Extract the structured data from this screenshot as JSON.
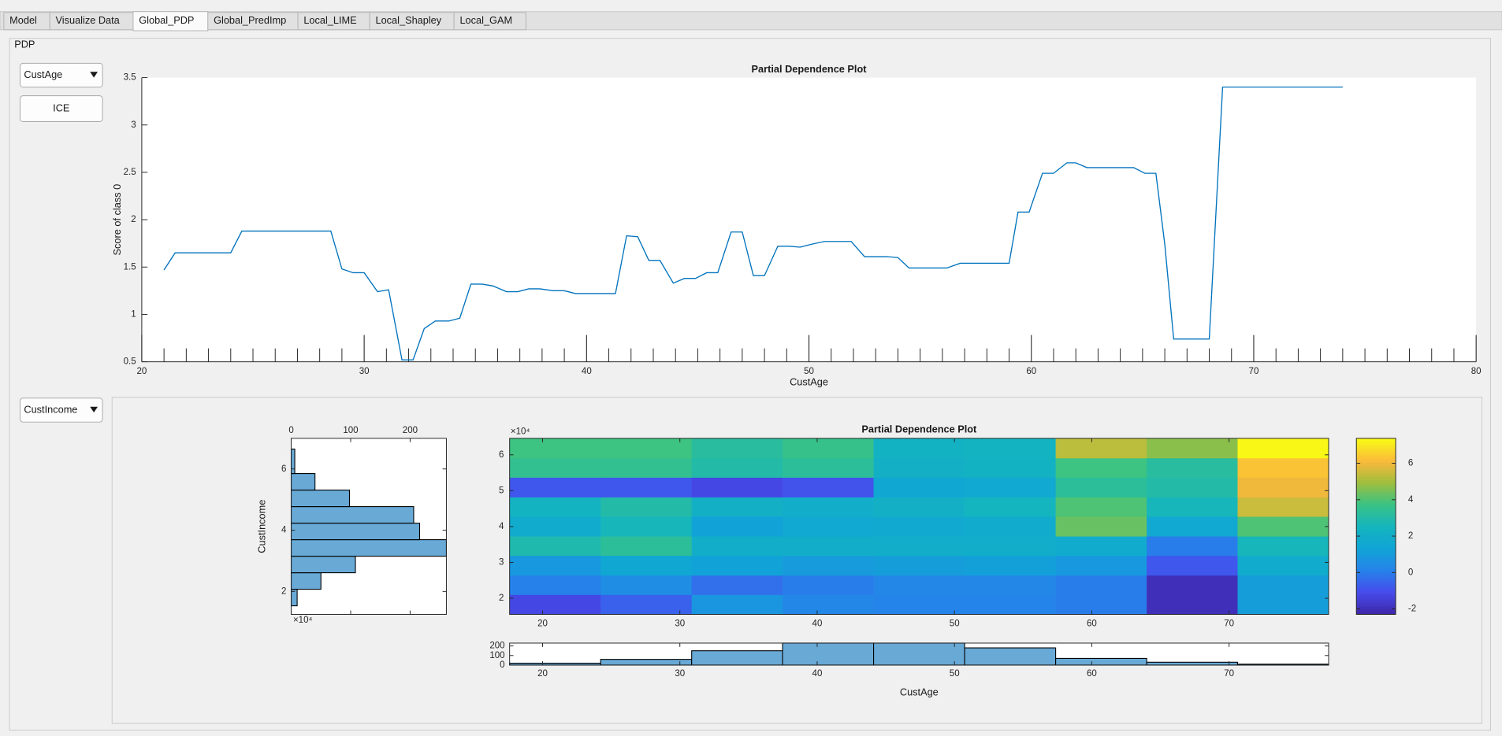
{
  "tabs": [
    "Model",
    "Visualize Data",
    "Global_PDP",
    "Global_PredImp",
    "Local_LIME",
    "Local_Shapley",
    "Local_GAM"
  ],
  "selected_tab": 2,
  "panel_title": "PDP",
  "controls": {
    "feature1": "CustAge",
    "button": "ICE",
    "feature2": "CustIncome"
  },
  "chart_data": [
    {
      "type": "line",
      "title": "Partial Dependence Plot",
      "xlabel": "CustAge",
      "ylabel": "Score of class 0",
      "color": "#0072bd",
      "xlim": [
        20,
        80
      ],
      "xticks": [
        20,
        30,
        40,
        50,
        60,
        70,
        80
      ],
      "minor_ticks": true,
      "ylim": [
        0.5,
        3.5
      ],
      "yticks": [
        0.5,
        1,
        1.5,
        2,
        2.5,
        3,
        3.5
      ],
      "x": [
        21,
        21.5,
        24,
        24.5,
        28.5,
        29,
        29.5,
        30,
        30.6,
        31.1,
        31.7,
        32.2,
        32.7,
        33.2,
        33.8,
        34.3,
        34.8,
        35.3,
        35.8,
        36.4,
        36.9,
        37.4,
        37.9,
        38.5,
        39,
        39.5,
        41.3,
        41.8,
        42.3,
        42.8,
        43.3,
        43.9,
        44.4,
        44.9,
        45.4,
        45.9,
        46.5,
        47,
        47.5,
        48,
        48.6,
        49.1,
        49.6,
        50.1,
        50.7,
        51.9,
        52.5,
        53,
        53.5,
        54,
        54.5,
        56.2,
        56.8,
        58.4,
        59,
        59.4,
        59.9,
        60.5,
        61,
        61.6,
        62,
        62.5,
        64.6,
        65.1,
        65.6,
        66,
        66.4,
        68,
        68.6,
        74
      ],
      "values": [
        1.47,
        1.65,
        1.65,
        1.88,
        1.88,
        1.48,
        1.44,
        1.44,
        1.24,
        1.26,
        0.52,
        0.52,
        0.85,
        0.93,
        0.93,
        0.96,
        1.32,
        1.32,
        1.3,
        1.24,
        1.24,
        1.27,
        1.27,
        1.25,
        1.25,
        1.22,
        1.22,
        1.83,
        1.82,
        1.57,
        1.57,
        1.33,
        1.38,
        1.38,
        1.44,
        1.44,
        1.87,
        1.87,
        1.41,
        1.41,
        1.72,
        1.72,
        1.71,
        1.74,
        1.77,
        1.77,
        1.61,
        1.61,
        1.61,
        1.6,
        1.49,
        1.49,
        1.54,
        1.54,
        1.54,
        2.08,
        2.08,
        2.49,
        2.49,
        2.6,
        2.6,
        2.55,
        2.55,
        2.49,
        2.49,
        1.74,
        0.74,
        0.74,
        3.4,
        3.4
      ]
    },
    {
      "type": "heatmap",
      "title": "Partial Dependence Plot",
      "y_exponent": "×10⁴",
      "colormap": "parula",
      "xlim": [
        17.6,
        77.25
      ],
      "xticks": [
        20,
        30,
        40,
        50,
        60,
        70
      ],
      "ylim": [
        1.55,
        6.46
      ],
      "yticks": [
        2,
        3,
        4,
        5,
        6
      ],
      "xbins": [
        17.6,
        24.23,
        30.86,
        37.48,
        44.11,
        50.74,
        57.37,
        64.0,
        70.62,
        77.25
      ],
      "ybins": [
        1.55,
        2.1,
        2.64,
        3.19,
        3.73,
        4.28,
        4.82,
        5.37,
        5.91,
        6.46
      ],
      "z": [
        [
          -1.2,
          -0.6,
          0.8,
          0.3,
          0.2,
          0.2,
          0.0,
          -2.0,
          1.1
        ],
        [
          0.1,
          0.5,
          -0.3,
          0.0,
          0.3,
          0.3,
          0.0,
          -2.0,
          1.1
        ],
        [
          0.9,
          1.5,
          1.3,
          1.0,
          1.1,
          1.2,
          0.9,
          -0.8,
          1.8
        ],
        [
          2.9,
          3.3,
          2.0,
          2.0,
          2.0,
          2.0,
          1.8,
          0.0,
          2.6
        ],
        [
          1.8,
          2.6,
          1.3,
          1.6,
          1.7,
          1.8,
          4.3,
          1.6,
          4.0
        ],
        [
          2.4,
          3.0,
          2.2,
          2.0,
          2.2,
          2.5,
          4.0,
          2.6,
          5.5
        ],
        [
          -0.8,
          -0.8,
          -1.2,
          -0.9,
          1.5,
          1.6,
          3.3,
          3.0,
          6.0
        ],
        [
          3.5,
          3.5,
          3.0,
          3.3,
          2.2,
          2.3,
          3.8,
          3.2,
          6.3
        ],
        [
          3.8,
          3.8,
          3.2,
          3.6,
          2.3,
          2.4,
          5.3,
          4.7,
          7.3
        ]
      ],
      "clim": [
        -2.3,
        7.37
      ],
      "cticks": [
        -2,
        0,
        2,
        4,
        6
      ]
    },
    {
      "type": "histogram",
      "orientation": "horizontal",
      "ylabel": "CustIncome",
      "y_exponent": "×10⁴",
      "color": "#68a9d6",
      "xlim": [
        0,
        261
      ],
      "xticks": [
        0,
        100,
        200
      ],
      "ylim": [
        1.25,
        7.0
      ],
      "yticks": [
        2,
        4,
        6
      ],
      "bins": [
        1.53,
        2.07,
        2.61,
        3.15,
        3.69,
        4.23,
        4.77,
        5.31,
        5.85,
        6.65
      ],
      "counts": [
        10,
        50,
        108,
        261,
        216,
        206,
        98,
        40,
        6
      ]
    },
    {
      "type": "histogram",
      "orientation": "vertical",
      "xlabel": "CustAge",
      "color": "#68a9d6",
      "xlim": [
        17.6,
        77.25
      ],
      "xticks": [
        20,
        30,
        40,
        50,
        60,
        70
      ],
      "ylim": [
        0,
        230
      ],
      "yticks": [
        0,
        100,
        200
      ],
      "bins": [
        17.6,
        24.23,
        30.86,
        37.48,
        44.11,
        50.74,
        57.37,
        64.0,
        70.62,
        77.25
      ],
      "counts": [
        20,
        60,
        150,
        230,
        230,
        180,
        70,
        30,
        10
      ]
    }
  ]
}
